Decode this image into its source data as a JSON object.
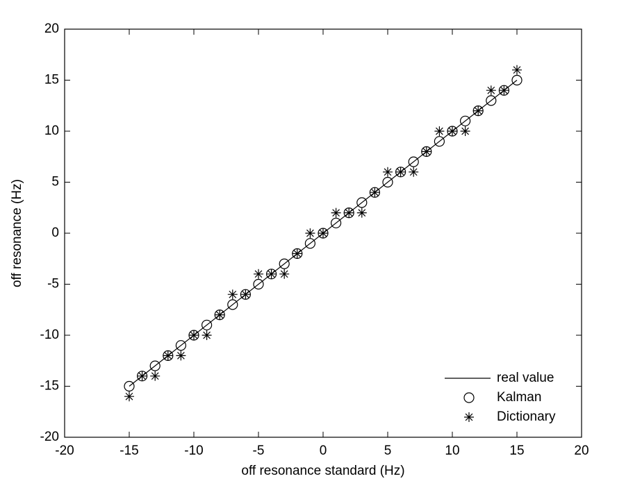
{
  "chart_data": {
    "type": "scatter",
    "xlabel": "off resonance standard (Hz)",
    "ylabel": "off resonance (Hz)",
    "xlim": [
      -20,
      20
    ],
    "ylim": [
      -20,
      20
    ],
    "xticks": [
      -20,
      -15,
      -10,
      -5,
      0,
      5,
      10,
      15,
      20
    ],
    "yticks": [
      -20,
      -15,
      -10,
      -5,
      0,
      5,
      10,
      15,
      20
    ],
    "legend": "lower right",
    "series": [
      {
        "name": "real value",
        "style": "line",
        "color": "#000000",
        "x": [
          -15,
          15
        ],
        "values": [
          -15,
          15
        ]
      },
      {
        "name": "Kalman",
        "style": "circle",
        "color": "#000000",
        "x": [
          -15,
          -14,
          -13,
          -12,
          -11,
          -10,
          -9,
          -8,
          -7,
          -6,
          -5,
          -4,
          -3,
          -2,
          -1,
          0,
          1,
          2,
          3,
          4,
          5,
          6,
          7,
          8,
          9,
          10,
          11,
          12,
          13,
          14,
          15
        ],
        "values": [
          -15,
          -14,
          -13,
          -12,
          -11,
          -10,
          -9,
          -8,
          -7,
          -6,
          -5,
          -4,
          -3,
          -2,
          -1,
          0,
          1,
          2,
          3,
          4,
          5,
          6,
          7,
          8,
          9,
          10,
          11,
          12,
          13,
          14,
          15
        ]
      },
      {
        "name": "Dictionary",
        "style": "star",
        "color": "#000000",
        "x": [
          -15,
          -14,
          -13,
          -12,
          -11,
          -10,
          -9,
          -8,
          -7,
          -6,
          -5,
          -4,
          -3,
          -2,
          -1,
          0,
          1,
          2,
          3,
          4,
          5,
          6,
          7,
          8,
          9,
          10,
          11,
          12,
          13,
          14,
          15
        ],
        "values": [
          -16,
          -14,
          -14,
          -12,
          -12,
          -10,
          -10,
          -8,
          -6,
          -6,
          -4,
          -4,
          -4,
          -2,
          0,
          0,
          2,
          2,
          2,
          4,
          6,
          6,
          6,
          8,
          10,
          10,
          10,
          12,
          14,
          14,
          16
        ]
      }
    ]
  }
}
